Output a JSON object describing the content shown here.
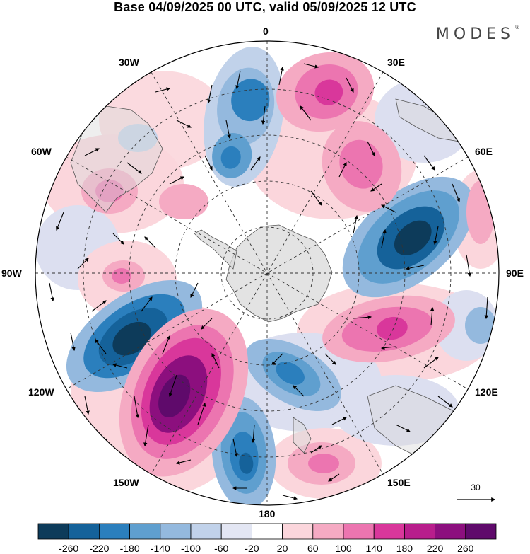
{
  "title": "Base 04/09/2025 00 UTC, valid 05/09/2025 12 UTC",
  "brand": "MODES",
  "brand_mark": "®",
  "longitude_labels": {
    "lon_0": "0",
    "lon_30e": "30E",
    "lon_60e": "60E",
    "lon_90e": "90E",
    "lon_120e": "120E",
    "lon_150e": "150E",
    "lon_180": "180",
    "lon_150w": "150W",
    "lon_120w": "120W",
    "lon_90w": "90W",
    "lon_60w": "60W",
    "lon_30w": "30W"
  },
  "vector_reference": {
    "label": "30"
  },
  "colorbar": {
    "ticks": [
      "-260",
      "-220",
      "-180",
      "-140",
      "-100",
      "-60",
      "-20",
      "20",
      "60",
      "100",
      "140",
      "180",
      "220",
      "260"
    ],
    "colors": [
      "#0d3b5a",
      "#15629a",
      "#2b7fbd",
      "#5f9fcf",
      "#94b9de",
      "#c1d2ea",
      "#e3e6f3",
      "#ffffff",
      "#fbd6dc",
      "#f5aac3",
      "#ec75b0",
      "#d9379b",
      "#b81e8c",
      "#8c0f7e",
      "#5f0a6b"
    ]
  },
  "colors": {
    "neg_strong": "#0d3b5a",
    "neg_mid": "#2b7fbd",
    "neg_light": "#94b9de",
    "neg_faint": "#dcdff0",
    "pos_faint": "#fbd6dc",
    "pos_light": "#f5aac3",
    "pos_mid": "#ec75b0",
    "pos_strong": "#b81e8c",
    "pos_max": "#5f0a6b",
    "land": "#d9d9d9"
  }
}
